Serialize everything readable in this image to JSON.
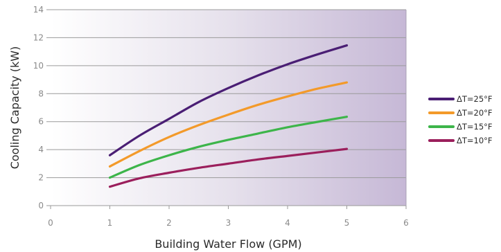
{
  "chart_data": {
    "type": "line",
    "xlabel": "Building Water Flow (GPM)",
    "ylabel": "Cooling Capacity (kW)",
    "xlim": [
      0,
      6
    ],
    "ylim": [
      0,
      14
    ],
    "xticks": [
      0,
      1,
      2,
      3,
      4,
      5,
      6
    ],
    "yticks": [
      0,
      2,
      4,
      6,
      8,
      10,
      12,
      14
    ],
    "grid": "horizontal",
    "background": "gradient white to lavender",
    "legend_position": "right",
    "x": [
      1,
      1.5,
      2,
      2.5,
      3,
      3.5,
      4,
      4.5,
      5
    ],
    "series": [
      {
        "name": "ΔT=25°F",
        "color": "#4a1e74",
        "values": [
          3.6,
          5.0,
          6.2,
          7.4,
          8.4,
          9.3,
          10.1,
          10.8,
          11.45
        ]
      },
      {
        "name": "ΔT=20°F",
        "color": "#f39a2a",
        "values": [
          2.8,
          3.9,
          4.9,
          5.75,
          6.5,
          7.2,
          7.8,
          8.35,
          8.8
        ]
      },
      {
        "name": "ΔT=15°F",
        "color": "#3db54a",
        "values": [
          2.0,
          2.9,
          3.6,
          4.2,
          4.7,
          5.15,
          5.6,
          5.98,
          6.35
        ]
      },
      {
        "name": "ΔT=10°F",
        "color": "#9b1f5c",
        "values": [
          1.35,
          1.95,
          2.35,
          2.7,
          3.0,
          3.3,
          3.55,
          3.8,
          4.05
        ]
      }
    ]
  }
}
